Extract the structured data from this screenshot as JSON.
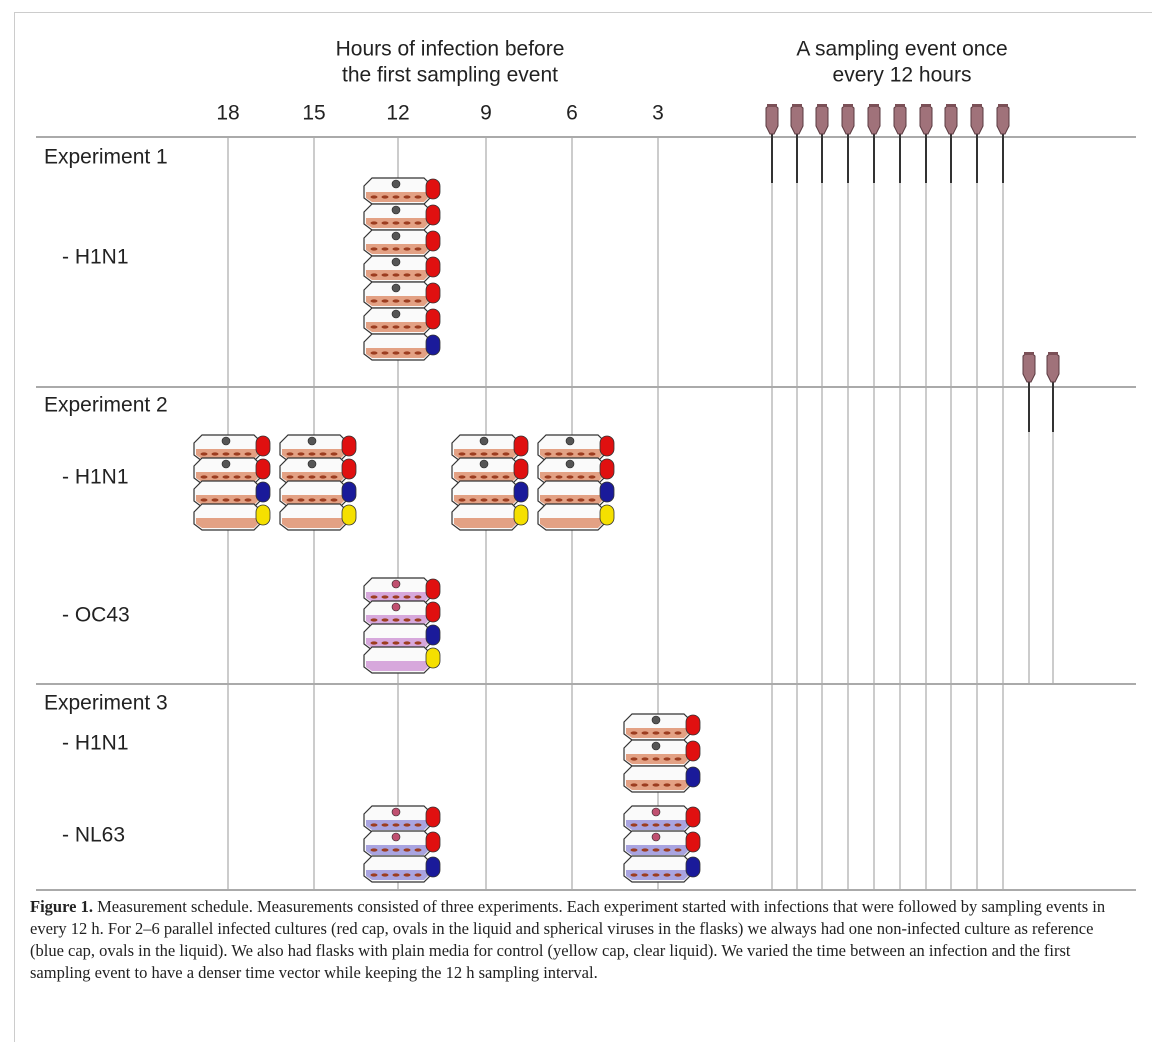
{
  "header": {
    "infection_title": [
      "Hours of infection before",
      "the first sampling event"
    ],
    "sampling_title": [
      "A sampling event once",
      "every 12 hours"
    ],
    "hours": [
      "18",
      "15",
      "12",
      "9",
      "6",
      "3"
    ]
  },
  "experiments": [
    {
      "title": "Experiment 1",
      "groups": [
        "- H1N1"
      ]
    },
    {
      "title": "Experiment 2",
      "groups": [
        "- H1N1",
        "- OC43"
      ]
    },
    {
      "title": "Experiment 3",
      "groups": [
        "- H1N1",
        "- NL63"
      ]
    }
  ],
  "caption": {
    "label": "Figure 1.",
    "text": "Measurement schedule. Measurements consisted of three experiments. Each experiment started with infections that were followed by sampling events in every 12 h. For 2–6 parallel infected cultures (red cap, ovals in the liquid and spherical viruses in the flasks) we always had one non-infected culture as reference (blue cap, ovals in the liquid). We also had flasks with plain media for control (yellow cap, clear liquid). We varied the time between an infection and the first sampling event to have a denser time vector while keeping the 12 h sampling interval."
  }
}
